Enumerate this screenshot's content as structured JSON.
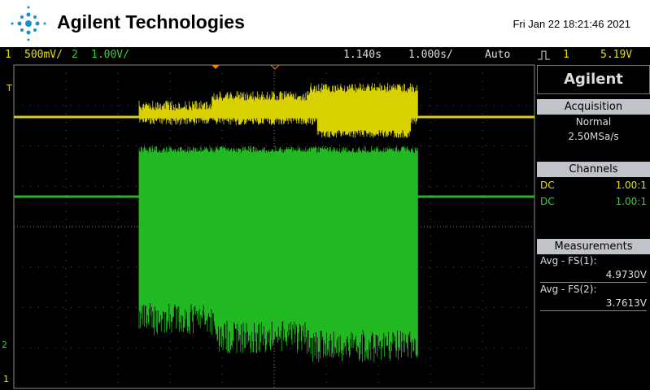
{
  "header": {
    "brand": "Agilent Technologies",
    "datetime": "Fri Jan 22 18:21:46 2021"
  },
  "status": {
    "ch1": "1",
    "ch1_scale": "500mV/",
    "ch2": "2",
    "ch2_scale": "1.00V/",
    "trigger_pos": "1.140s",
    "timebase": "1.000s/",
    "mode": "Auto",
    "trig_source": "1",
    "trig_level": "5.19V"
  },
  "markers": {
    "trigger": "T",
    "ch2": "2",
    "ch1": "1"
  },
  "panel": {
    "logo": "Agilent",
    "acquisition": {
      "title": "Acquisition",
      "mode": "Normal",
      "rate": "2.50MSa/s"
    },
    "channels": {
      "title": "Channels",
      "rows": [
        [
          "DC",
          "1.00:1"
        ],
        [
          "DC",
          "1.00:1"
        ]
      ]
    },
    "measurements": {
      "title": "Measurements",
      "items": [
        {
          "label": "Avg - FS(1):",
          "value": "4.9730V"
        },
        {
          "label": "Avg - FS(2):",
          "value": "3.7613V"
        }
      ]
    }
  }
}
